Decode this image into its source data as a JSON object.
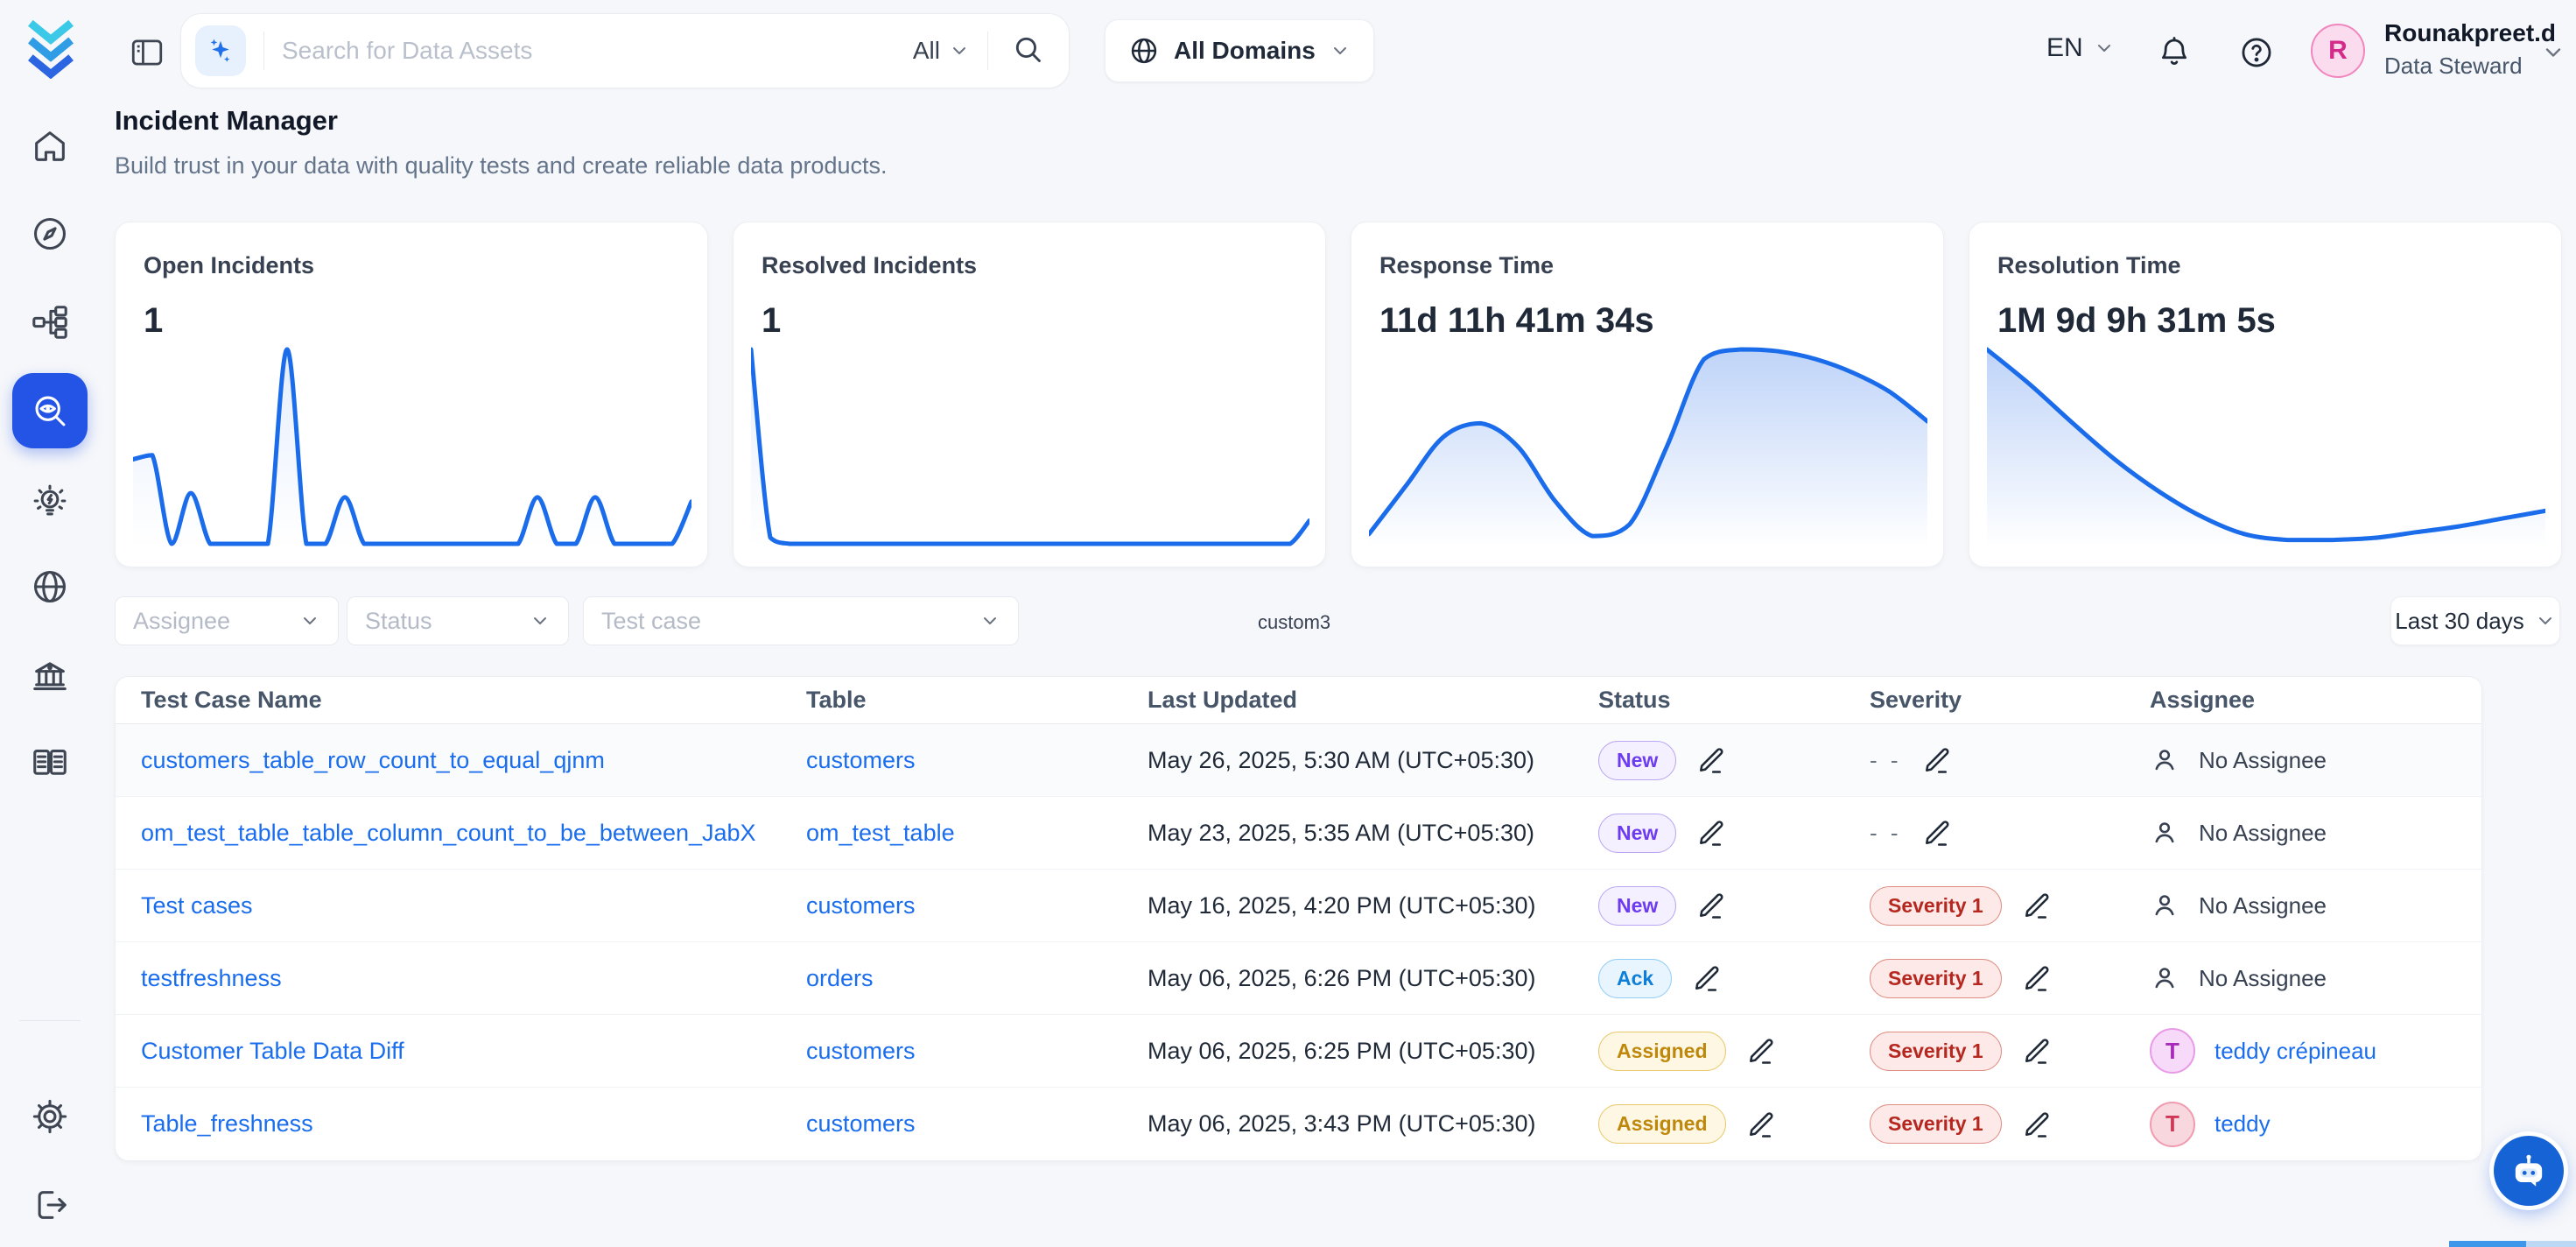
{
  "colors": {
    "accent": "#2354e6",
    "link": "#1a6ded",
    "spark_stroke": "#1b6ceb",
    "status_new": "#6e3cf0",
    "status_ack": "#0e7fd8",
    "status_assigned": "#c0880b",
    "severity_1": "#b5271f"
  },
  "topbar": {
    "search_placeholder": "Search for Data Assets",
    "search_scope": "All",
    "domains_label": "All Domains",
    "language": "EN",
    "user": {
      "name": "Rounakpreet.d",
      "role": "Data Steward",
      "initial": "R"
    }
  },
  "sidebar": {
    "icons": [
      "home-icon",
      "explore-compass-icon",
      "data-flow-icon",
      "observability-search-eye-icon",
      "insights-bulb-icon",
      "domains-globe-icon",
      "govern-bank-icon",
      "glossary-book-icon",
      "settings-gear-icon",
      "logout-icon"
    ],
    "active_item": "observability"
  },
  "page": {
    "title": "Incident Manager",
    "subtitle": "Build trust in your data with quality tests and create reliable data products."
  },
  "stats": [
    {
      "label": "Open Incidents",
      "value": "1"
    },
    {
      "label": "Resolved Incidents",
      "value": "1"
    },
    {
      "label": "Response Time",
      "value": "11d 11h 41m 34s"
    },
    {
      "label": "Resolution Time",
      "value": "1M 9d 9h 31m 5s"
    }
  ],
  "chart_data": [
    {
      "type": "line",
      "title": "Open Incidents",
      "x": "last 30 days (daily)",
      "grid": false,
      "legend": false,
      "series": [
        {
          "name": "Open Incidents",
          "values": [
            2,
            2.1,
            0,
            1.2,
            0,
            0,
            0,
            0,
            4.6,
            0,
            0,
            1.1,
            0,
            0,
            0,
            0,
            0,
            0,
            0,
            0,
            0,
            1.1,
            0,
            0,
            1.1,
            0,
            0,
            0,
            0,
            1
          ]
        }
      ]
    },
    {
      "type": "line",
      "title": "Resolved Incidents",
      "x": "last 30 days (daily)",
      "grid": false,
      "legend": false,
      "series": [
        {
          "name": "Resolved Incidents",
          "values": [
            4.6,
            0.15,
            0,
            0,
            0,
            0,
            0,
            0,
            0,
            0,
            0,
            0,
            0,
            0,
            0,
            0,
            0,
            0,
            0,
            0,
            0,
            0,
            0,
            0,
            0,
            0,
            0,
            0,
            0,
            0.55
          ]
        }
      ]
    },
    {
      "type": "area",
      "title": "Response Time",
      "x": "last 30 days",
      "grid": false,
      "legend": false,
      "series": [
        {
          "name": "Response Time",
          "values": [
            0.05,
            0.3,
            0.55,
            0.62,
            0.5,
            0.22,
            0.04,
            0.1,
            0.5,
            0.95,
            1,
            0.99,
            0.95,
            0.88,
            0.78,
            0.63
          ]
        }
      ]
    },
    {
      "type": "area",
      "title": "Resolution Time",
      "x": "last 30 days",
      "grid": false,
      "legend": false,
      "series": [
        {
          "name": "Resolution Time",
          "values": [
            1,
            0.82,
            0.62,
            0.43,
            0.27,
            0.14,
            0.05,
            0.02,
            0.02,
            0.03,
            0.06,
            0.09,
            0.13,
            0.17
          ]
        }
      ]
    }
  ],
  "filters": {
    "assignee_placeholder": "Assignee",
    "status_placeholder": "Status",
    "test_case_placeholder": "Test case",
    "custom_label": "custom3",
    "time_range": "Last 30 days"
  },
  "table": {
    "columns": [
      "Test Case Name",
      "Table",
      "Last Updated",
      "Status",
      "Severity",
      "Assignee"
    ],
    "no_severity_label": "- -",
    "rows": [
      {
        "name": "customers_table_row_count_to_equal_qjnm",
        "table": "customers",
        "updated": "May 26, 2025, 5:30 AM (UTC+05:30)",
        "status": "New",
        "status_type": "new",
        "severity": null,
        "assignee": {
          "type": "none",
          "label": "No Assignee"
        }
      },
      {
        "name": "om_test_table_table_column_count_to_be_between_JabX",
        "table": "om_test_table",
        "updated": "May 23, 2025, 5:35 AM (UTC+05:30)",
        "status": "New",
        "status_type": "new",
        "severity": null,
        "assignee": {
          "type": "none",
          "label": "No Assignee"
        }
      },
      {
        "name": "Test cases",
        "table": "customers",
        "updated": "May 16, 2025, 4:20 PM (UTC+05:30)",
        "status": "New",
        "status_type": "new",
        "severity": "Severity 1",
        "assignee": {
          "type": "none",
          "label": "No Assignee"
        }
      },
      {
        "name": "testfreshness",
        "table": "orders",
        "updated": "May 06, 2025, 6:26 PM (UTC+05:30)",
        "status": "Ack",
        "status_type": "ack",
        "severity": "Severity 1",
        "assignee": {
          "type": "none",
          "label": "No Assignee"
        }
      },
      {
        "name": "Customer Table Data Diff",
        "table": "customers",
        "updated": "May 06, 2025, 6:25 PM (UTC+05:30)",
        "status": "Assigned",
        "status_type": "assigned",
        "severity": "Severity 1",
        "assignee": {
          "type": "user",
          "label": "teddy crépineau",
          "initial": "T",
          "avatar_bg": "#f7d9f9",
          "avatar_border": "#e99ae6",
          "avatar_color": "#a62bb8"
        }
      },
      {
        "name": "Table_freshness",
        "table": "customers",
        "updated": "May 06, 2025, 3:43 PM (UTC+05:30)",
        "status": "Assigned",
        "status_type": "assigned",
        "severity": "Severity 1",
        "assignee": {
          "type": "user",
          "label": "teddy",
          "initial": "T",
          "avatar_bg": "#f9d7de",
          "avatar_border": "#ef9bb0",
          "avatar_color": "#cf3756"
        }
      }
    ]
  }
}
